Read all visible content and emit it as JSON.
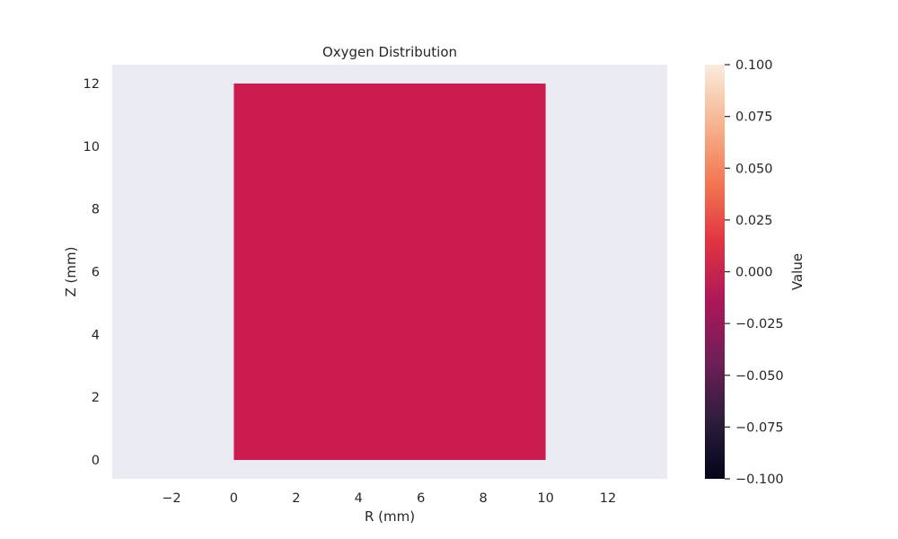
{
  "chart_data": {
    "type": "heatmap",
    "title": "Oxygen Distribution",
    "xlabel": "R (mm)",
    "ylabel": "Z (mm)",
    "xlim": [
      -3.9,
      13.9
    ],
    "ylim": [
      -0.6,
      12.6
    ],
    "xticks": [
      -2,
      0,
      2,
      4,
      6,
      8,
      10,
      12
    ],
    "xtick_labels": [
      "−2",
      "0",
      "2",
      "4",
      "6",
      "8",
      "10",
      "12"
    ],
    "yticks": [
      0,
      2,
      4,
      6,
      8,
      10,
      12
    ],
    "ytick_labels": [
      "0",
      "2",
      "4",
      "6",
      "8",
      "10",
      "12"
    ],
    "grid": false,
    "background_color": "#EAEAF2",
    "field": {
      "r_range": [
        0,
        10
      ],
      "z_range": [
        0,
        12
      ],
      "value": 0.0,
      "color": "#CB1B4F"
    },
    "colorbar": {
      "label": "Value",
      "range": [
        -0.1,
        0.1
      ],
      "ticks": [
        0.1,
        0.075,
        0.05,
        0.025,
        0.0,
        -0.025,
        -0.05,
        -0.075,
        -0.1
      ],
      "tick_labels": [
        "0.100",
        "0.075",
        "0.050",
        "0.025",
        "0.000",
        "−0.025",
        "−0.050",
        "−0.075",
        "−0.100"
      ],
      "colormap": "rocket",
      "colormap_stops": [
        "#03051A",
        "#2E1E3C",
        "#701F57",
        "#AD1759",
        "#E13342",
        "#F37651",
        "#F6B48F",
        "#FAEBDD"
      ]
    }
  }
}
